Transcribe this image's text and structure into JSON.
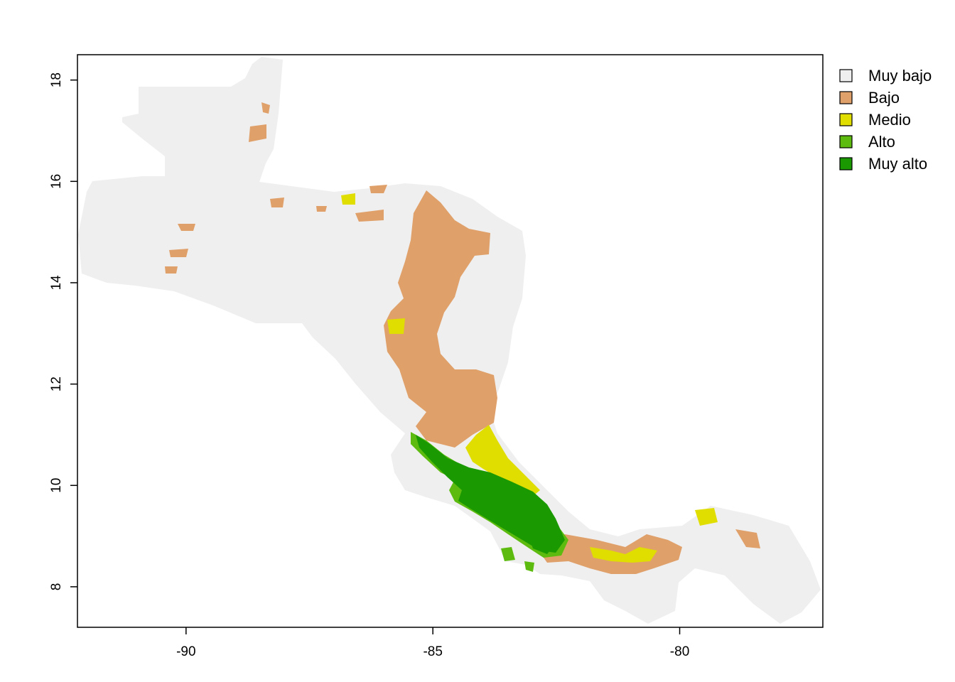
{
  "map": {
    "x_axis": {
      "range": [
        -92.2,
        -77.1
      ],
      "ticks": [
        -90,
        -85,
        -80
      ],
      "tick_labels": [
        "-90",
        "-85",
        "-80"
      ]
    },
    "y_axis": {
      "range": [
        7.2,
        18.5
      ],
      "ticks": [
        8,
        10,
        12,
        14,
        16,
        18
      ],
      "tick_labels": [
        "8",
        "10",
        "12",
        "14",
        "16",
        "18"
      ]
    },
    "regions": [
      {
        "class": "muy_bajo",
        "description": "land mass of Central America"
      },
      {
        "class": "bajo",
        "description": "Honduras/Nicaragua interior, Panama"
      },
      {
        "class": "medio",
        "description": "Caribbean Costa Rica, Panama"
      },
      {
        "class": "alto",
        "description": "Costa Rica highlands"
      },
      {
        "class": "muy_alto",
        "description": "Costa Rica cordilleras"
      }
    ]
  },
  "legend": {
    "items": [
      {
        "key": "muy_bajo",
        "label": "Muy bajo",
        "color": "#EFEFEF"
      },
      {
        "key": "bajo",
        "label": "Bajo",
        "color": "#E0A06A"
      },
      {
        "key": "medio",
        "label": "Medio",
        "color": "#E0DD00"
      },
      {
        "key": "alto",
        "label": "Alto",
        "color": "#5DBB10"
      },
      {
        "key": "muy_alto",
        "label": "Muy alto",
        "color": "#1A9A00"
      }
    ]
  }
}
